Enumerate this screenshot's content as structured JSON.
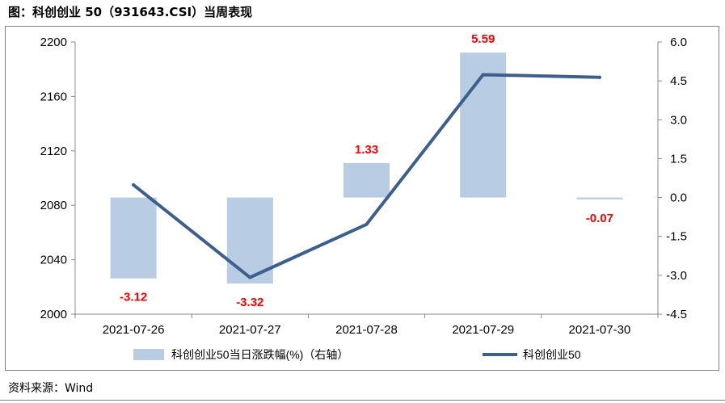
{
  "header": {
    "title": "图：科创创业 50（931643.CSI）当周表现"
  },
  "footer": {
    "source": "资料来源：Wind"
  },
  "chart_data": {
    "type": "bar+line",
    "categories": [
      "2021-07-26",
      "2021-07-27",
      "2021-07-28",
      "2021-07-29",
      "2021-07-30"
    ],
    "series": [
      {
        "name": "科创创业50当日涨跌幅(%)（右轴）",
        "type": "bar",
        "axis": "right",
        "values": [
          -3.12,
          -3.32,
          1.33,
          5.59,
          -0.07
        ],
        "color": "#b8cce4"
      },
      {
        "name": "科创创业50",
        "type": "line",
        "axis": "left",
        "values": [
          2095,
          2027,
          2066,
          2176,
          2174
        ],
        "color": "#3c5f8c"
      }
    ],
    "data_labels": [
      "-3.12",
      "-3.32",
      "1.33",
      "5.59",
      "-0.07"
    ],
    "data_label_color": "#ff0000",
    "left_axis": {
      "min": 2000,
      "max": 2200,
      "ticks": [
        "2000",
        "2040",
        "2080",
        "2120",
        "2160",
        "2200"
      ]
    },
    "right_axis": {
      "min": -4.5,
      "max": 6.0,
      "ticks": [
        "-4.5",
        "-3.0",
        "-1.5",
        "0.0",
        "1.5",
        "3.0",
        "4.5",
        "6.0"
      ]
    },
    "grid": false,
    "legend_position": "bottom"
  }
}
